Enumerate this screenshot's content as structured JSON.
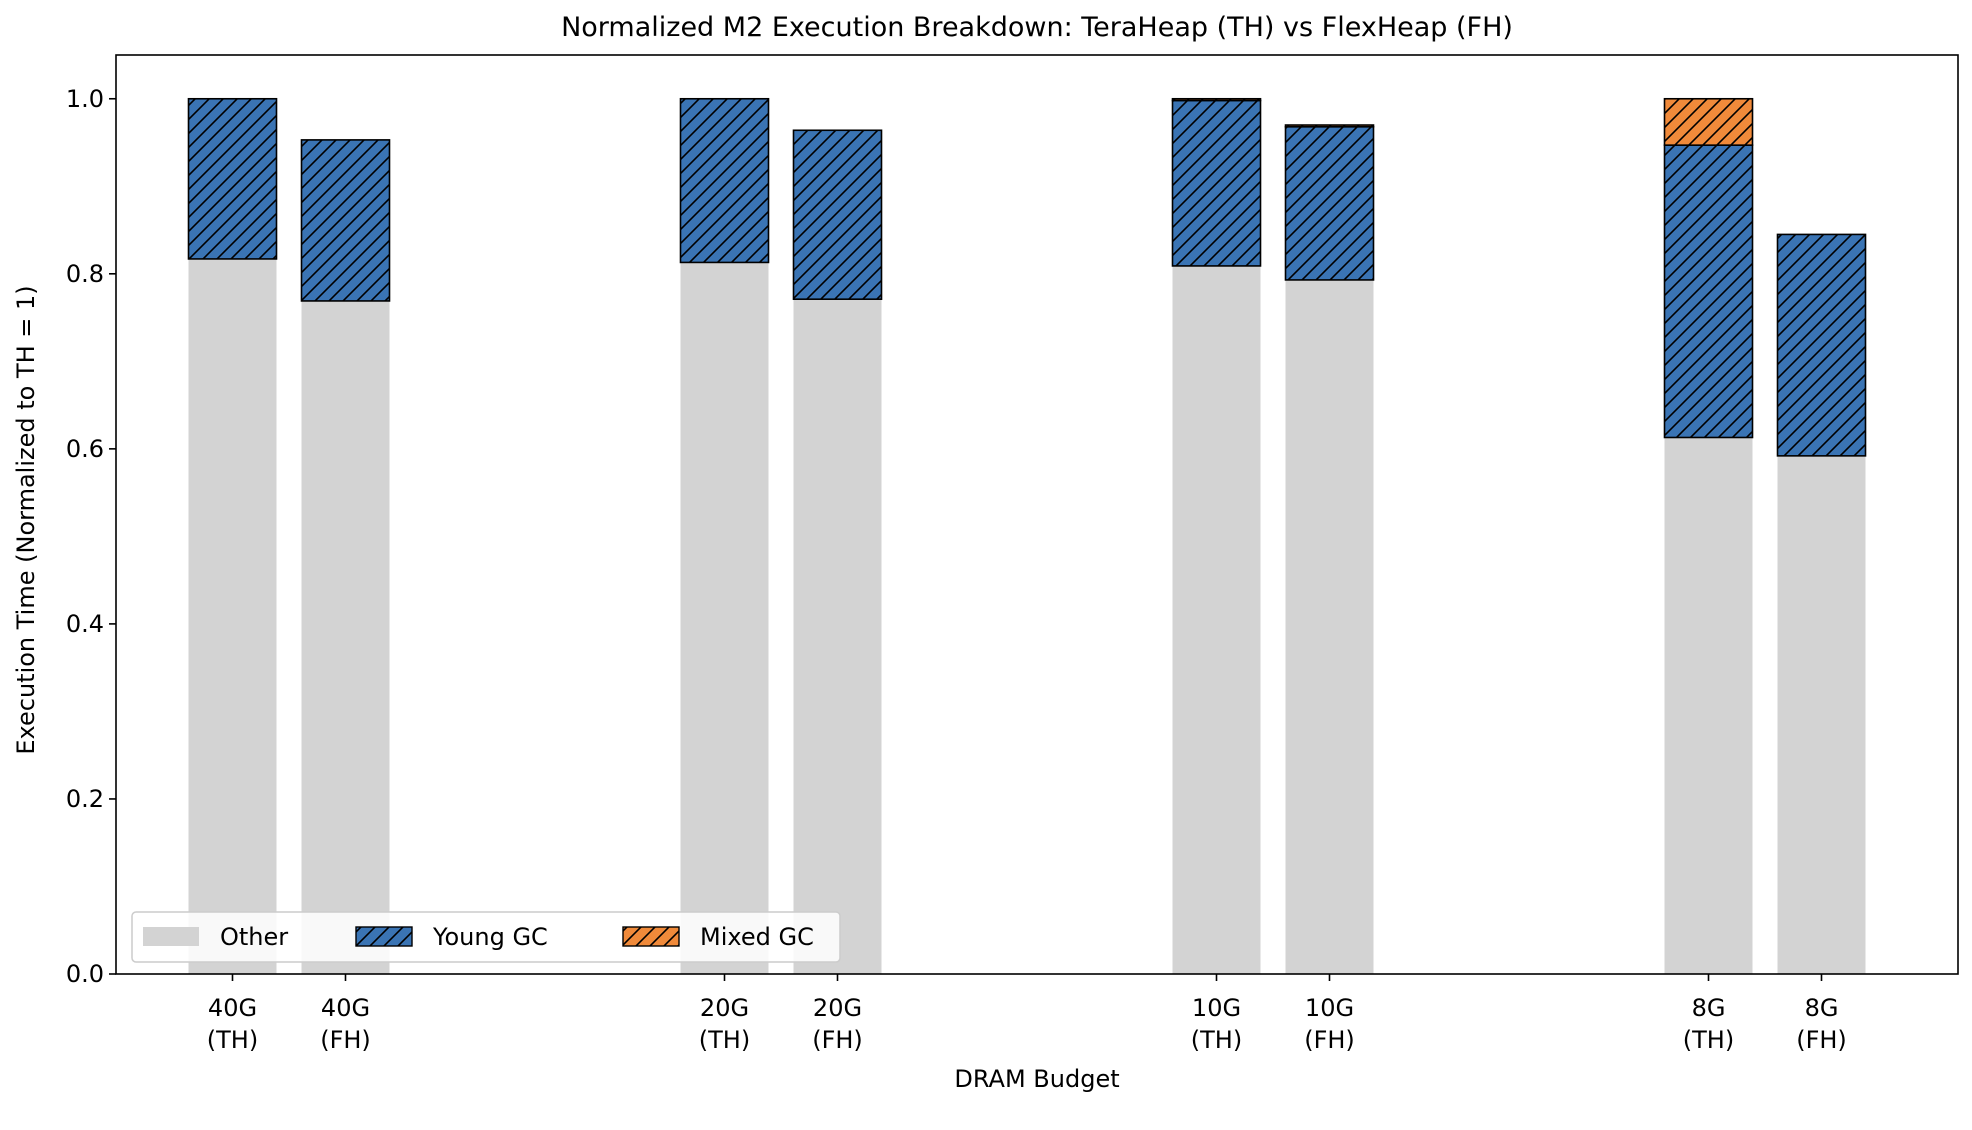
{
  "chart_data": {
    "type": "bar",
    "stacked": true,
    "title": "Normalized M2 Execution Breakdown: TeraHeap (TH) vs FlexHeap (FH)",
    "xlabel": "DRAM Budget",
    "ylabel": "Execution Time (Normalized to TH = 1)",
    "ylim": [
      0,
      1.05
    ],
    "yticks": [
      "0.0",
      "0.2",
      "0.4",
      "0.6",
      "0.8",
      "1.0"
    ],
    "grid": false,
    "legend_position": "lower-left",
    "groups": [
      {
        "name": "40G",
        "bars": [
          {
            "label_line1": "40G",
            "label_line2": "(TH)",
            "other": 0.817,
            "young_gc": 0.183,
            "mixed_gc": 0.0
          },
          {
            "label_line1": "40G",
            "label_line2": "(FH)",
            "other": 0.769,
            "young_gc": 0.184,
            "mixed_gc": 0.0
          }
        ]
      },
      {
        "name": "20G",
        "bars": [
          {
            "label_line1": "20G",
            "label_line2": "(TH)",
            "other": 0.813,
            "young_gc": 0.187,
            "mixed_gc": 0.0
          },
          {
            "label_line1": "20G",
            "label_line2": "(FH)",
            "other": 0.771,
            "young_gc": 0.193,
            "mixed_gc": 0.0
          }
        ]
      },
      {
        "name": "10G",
        "bars": [
          {
            "label_line1": "10G",
            "label_line2": "(TH)",
            "other": 0.809,
            "young_gc": 0.189,
            "mixed_gc": 0.002
          },
          {
            "label_line1": "10G",
            "label_line2": "(FH)",
            "other": 0.793,
            "young_gc": 0.175,
            "mixed_gc": 0.002
          }
        ]
      },
      {
        "name": "8G",
        "bars": [
          {
            "label_line1": "8G",
            "label_line2": "(TH)",
            "other": 0.613,
            "young_gc": 0.334,
            "mixed_gc": 0.053
          },
          {
            "label_line1": "8G",
            "label_line2": "(FH)",
            "other": 0.592,
            "young_gc": 0.253,
            "mixed_gc": 0.0
          }
        ]
      }
    ],
    "series": [
      {
        "key": "other",
        "name": "Other",
        "color": "#d3d3d3",
        "hatch": false
      },
      {
        "key": "young_gc",
        "name": "Young GC",
        "color": "#3a74b4",
        "hatch": true
      },
      {
        "key": "mixed_gc",
        "name": "Mixed GC",
        "color": "#f08a3a",
        "hatch": true
      }
    ]
  }
}
